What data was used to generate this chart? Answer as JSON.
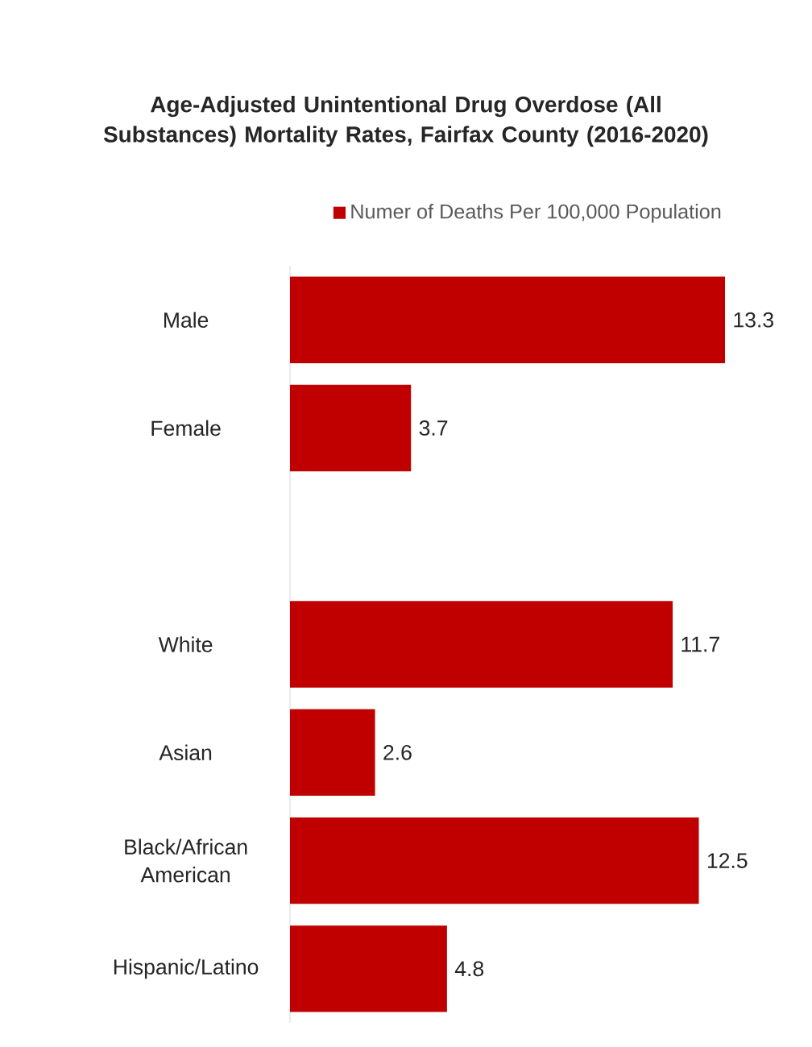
{
  "chart_data": {
    "type": "bar",
    "orientation": "horizontal",
    "title": "Age-Adjusted Unintentional Drug Overdose (All Substances) Mortality Rates, Fairfax County (2016-2020)",
    "categories": [
      "Male",
      "Female",
      null,
      "White",
      "Asian",
      "Black/African American",
      "Hispanic/Latino"
    ],
    "series": [
      {
        "name": "Numer of Deaths Per 100,000 Population",
        "color": "#c00000",
        "values": [
          13.3,
          3.7,
          null,
          11.7,
          2.6,
          12.5,
          4.8
        ]
      }
    ],
    "data_labels": true,
    "legend": "top"
  }
}
